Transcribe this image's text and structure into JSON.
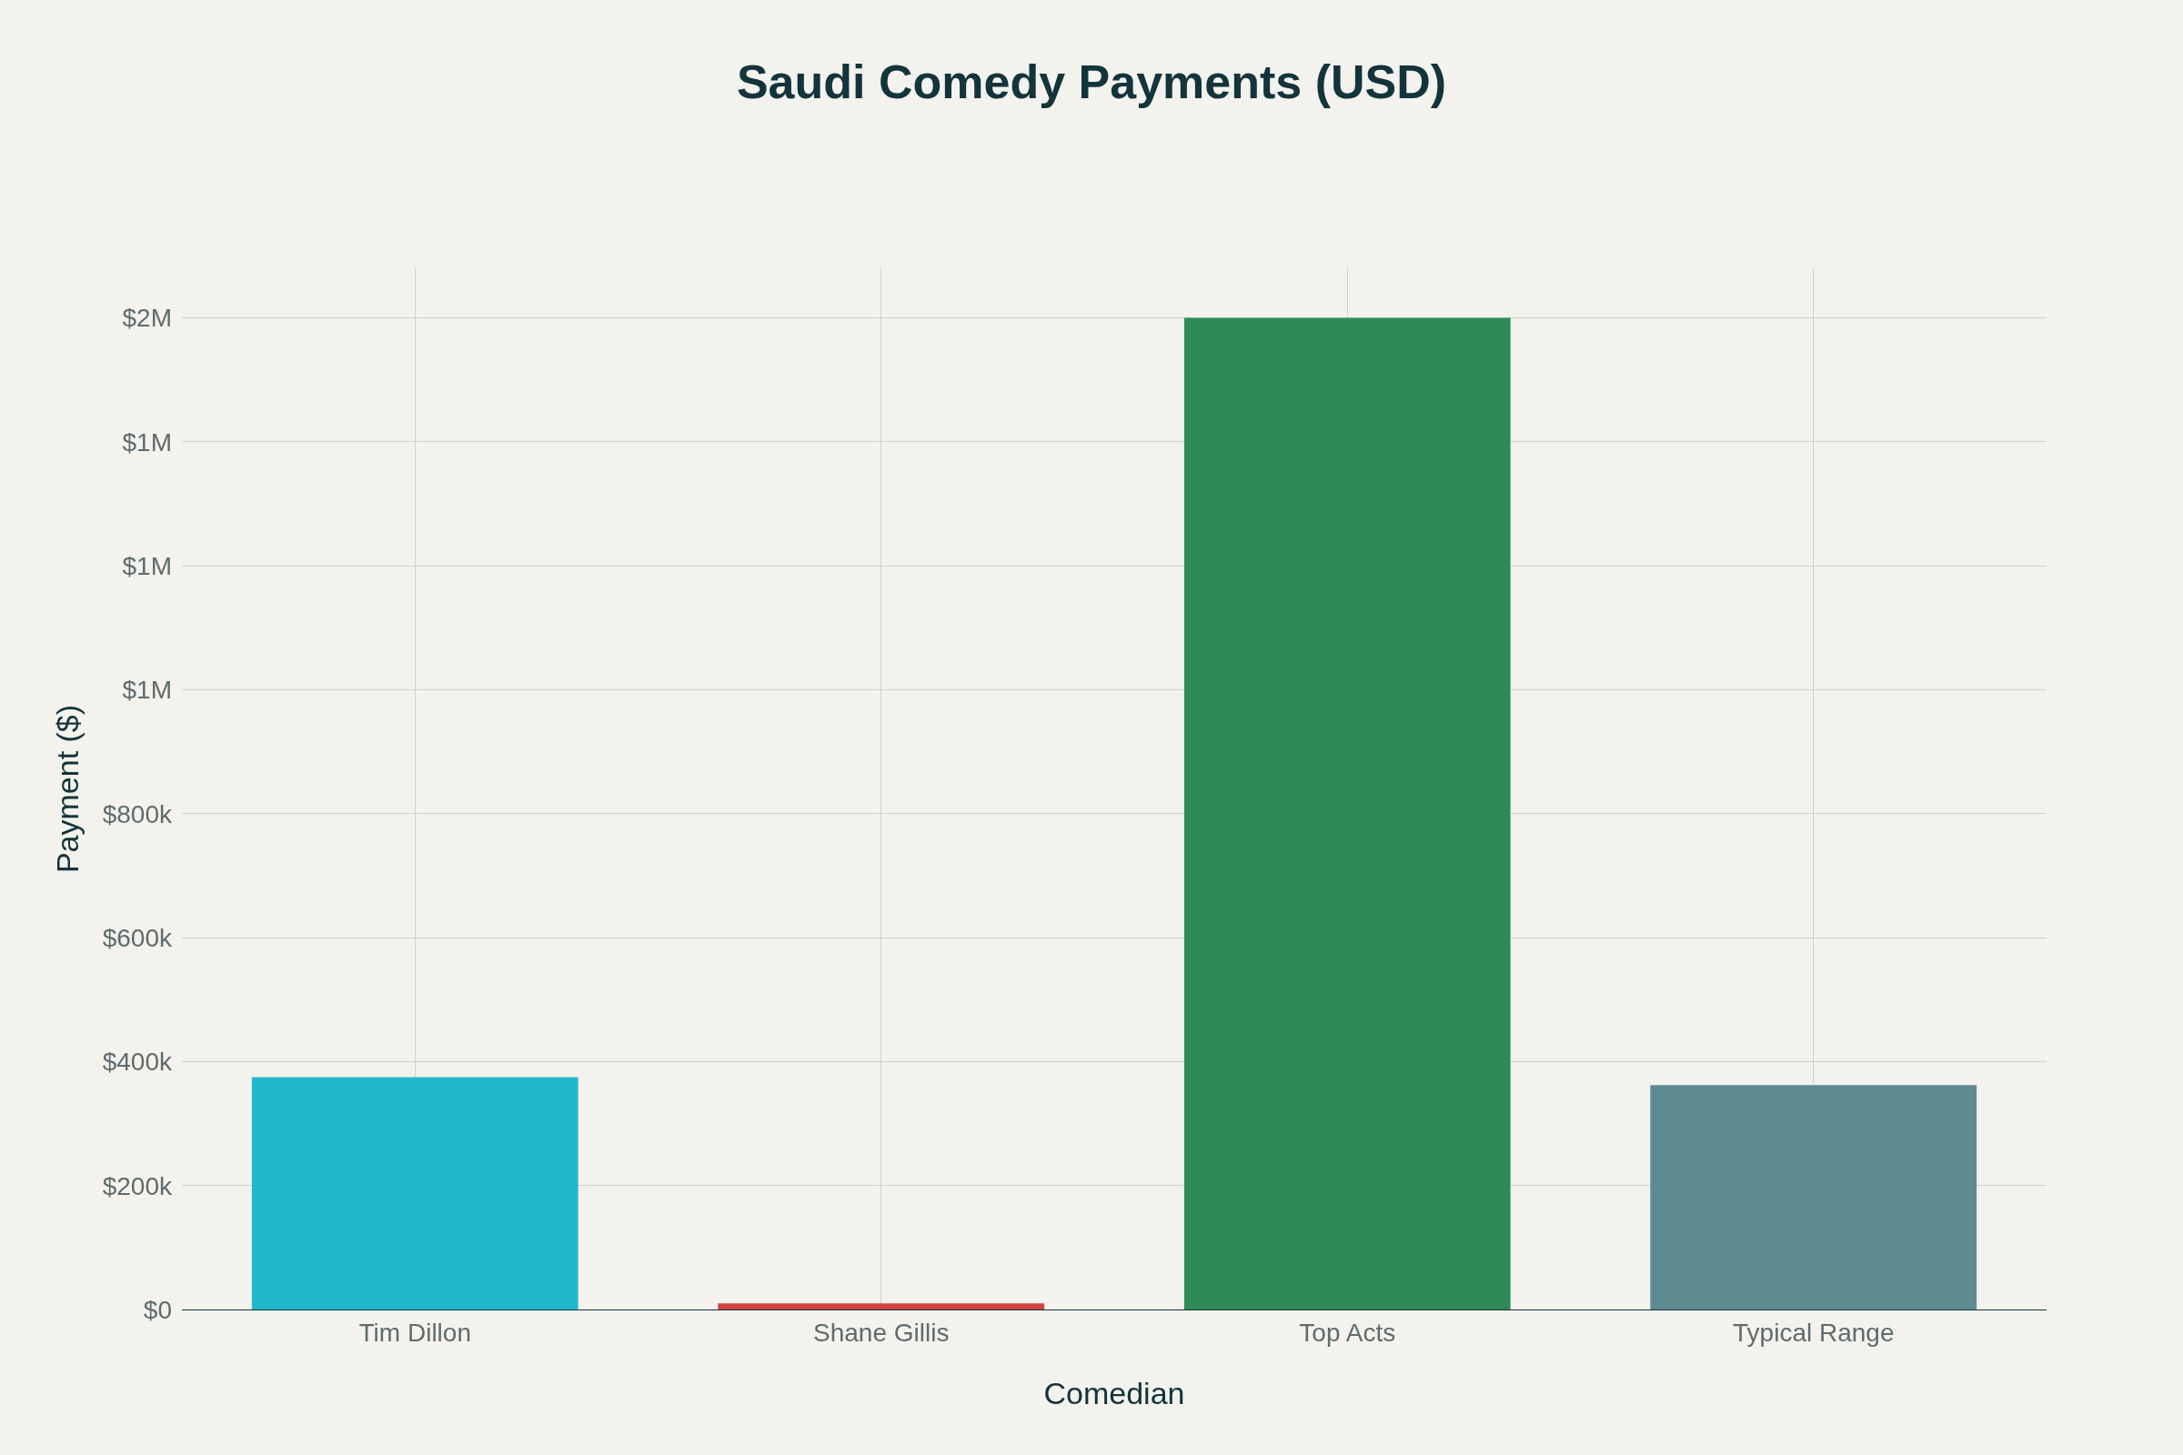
{
  "chart_data": {
    "type": "bar",
    "title": "Saudi Comedy Payments (USD)",
    "xlabel": "Comedian",
    "ylabel": "Payment ($)",
    "categories": [
      "Tim Dillon",
      "Shane Gillis",
      "Top Acts",
      "Typical Range"
    ],
    "values": [
      375000,
      10000,
      1600000,
      362000
    ],
    "colors": [
      "#21b8cd",
      "#d2443f",
      "#2e8b57",
      "#5e8a91"
    ],
    "ylim": [
      0,
      1680000
    ],
    "yticks": [
      {
        "value": 0,
        "label": "$0"
      },
      {
        "value": 200000,
        "label": "$200k"
      },
      {
        "value": 400000,
        "label": "$400k"
      },
      {
        "value": 600000,
        "label": "$600k"
      },
      {
        "value": 800000,
        "label": "$800k"
      },
      {
        "value": 1000000,
        "label": "$1M"
      },
      {
        "value": 1200000,
        "label": "$1M"
      },
      {
        "value": 1400000,
        "label": "$1M"
      },
      {
        "value": 1600000,
        "label": "$2M"
      }
    ],
    "grid": true
  }
}
